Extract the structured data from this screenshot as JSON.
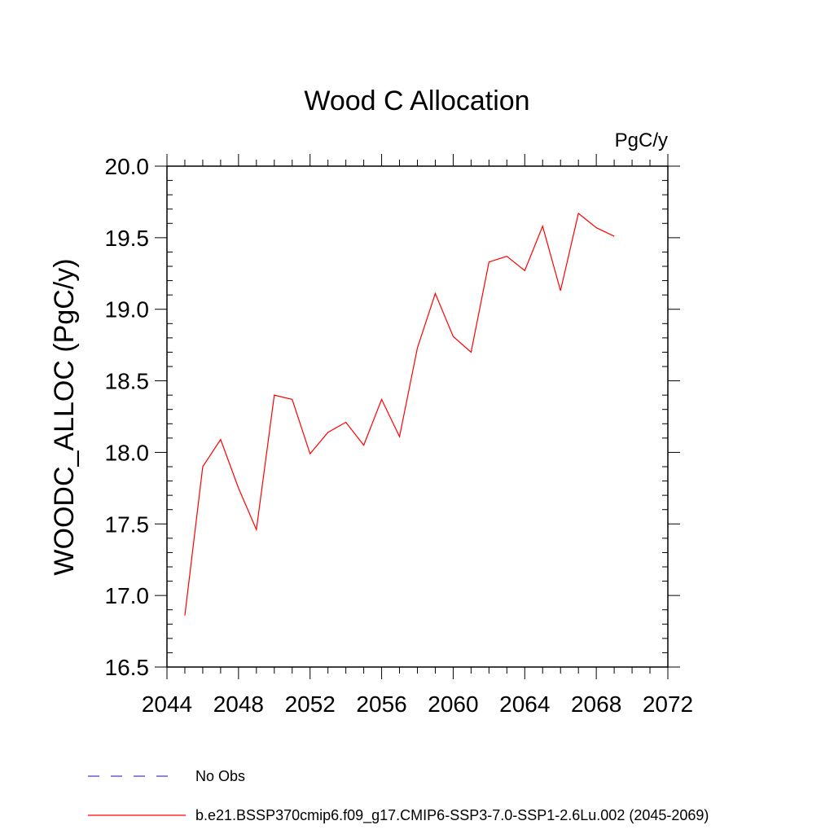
{
  "chart_data": {
    "type": "line",
    "title": "Wood C Allocation",
    "units_label": "PgC/y",
    "xlabel": "",
    "ylabel": "WOODC_ALLOC  (PgC/y)",
    "xlim": [
      2044,
      2072
    ],
    "ylim": [
      16.5,
      20.0
    ],
    "x_ticks": [
      2044,
      2048,
      2052,
      2056,
      2060,
      2064,
      2068,
      2072
    ],
    "y_ticks": [
      16.5,
      17.0,
      17.5,
      18.0,
      18.5,
      19.0,
      19.5,
      20.0
    ],
    "y_tick_labels": [
      "16.5",
      "17.0",
      "17.5",
      "18.0",
      "18.5",
      "19.0",
      "19.5",
      "20.0"
    ],
    "grid": false,
    "legend_position": "bottom-left",
    "series": [
      {
        "name": "No Obs",
        "color": "#6a5acd",
        "style": "dashed",
        "x": [],
        "values": []
      },
      {
        "name": "b.e21.BSSP370cmip6.f09_g17.CMIP6-SSP3-7.0-SSP1-2.6Lu.002 (2045-2069)",
        "color": "#ff0000",
        "style": "solid",
        "x": [
          2045,
          2046,
          2047,
          2048,
          2049,
          2050,
          2051,
          2052,
          2053,
          2054,
          2055,
          2056,
          2057,
          2058,
          2059,
          2060,
          2061,
          2062,
          2063,
          2064,
          2065,
          2066,
          2067,
          2068,
          2069
        ],
        "values": [
          16.86,
          17.9,
          18.09,
          17.75,
          17.46,
          18.4,
          18.37,
          17.99,
          18.14,
          18.21,
          18.05,
          18.37,
          18.11,
          18.73,
          19.11,
          18.81,
          18.7,
          19.33,
          19.37,
          19.27,
          19.58,
          19.13,
          19.67,
          19.57,
          19.51
        ]
      }
    ]
  }
}
